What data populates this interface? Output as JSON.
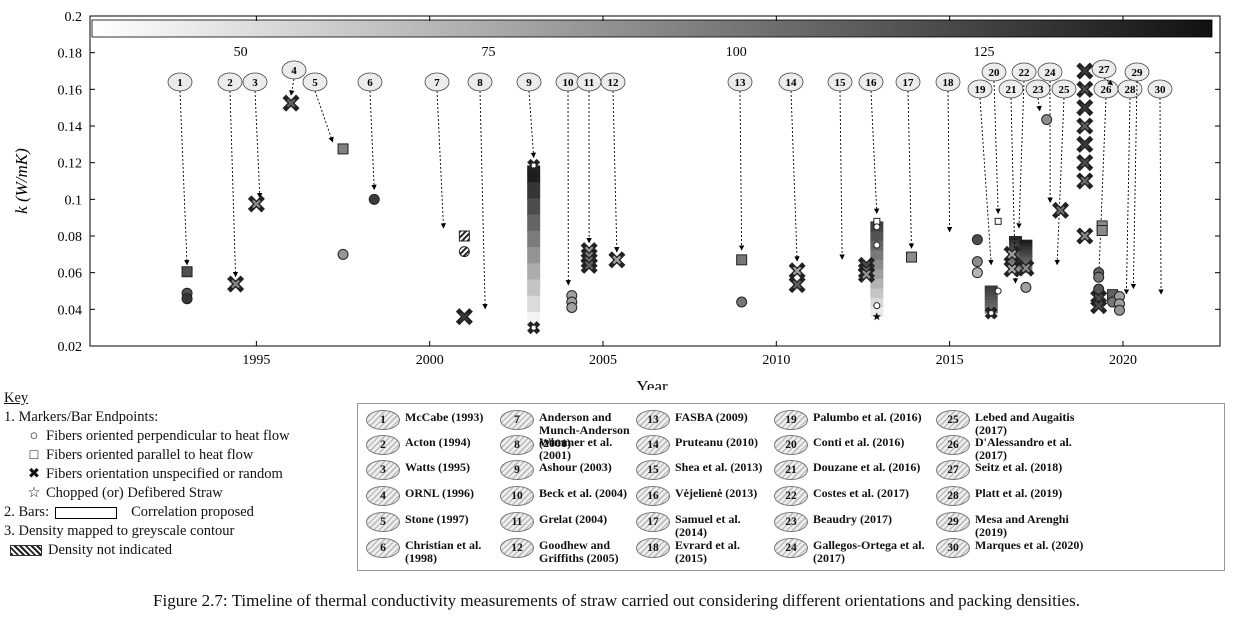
{
  "chart_data": {
    "type": "scatter",
    "xlabel": "Year",
    "ylabel": "k (W/mK)",
    "xlim": [
      1990.2,
      2022.8
    ],
    "ylim": [
      0.02,
      0.2
    ],
    "xticks": [
      "1995",
      "2000",
      "2005",
      "2010",
      "2015",
      "2020"
    ],
    "yticks": [
      "0.02",
      "0.04",
      "0.06",
      "0.08",
      "0.1",
      "0.12",
      "0.14",
      "0.16",
      "0.18",
      "0.2"
    ],
    "colorbar_ticks": [
      "50",
      "75",
      "100",
      "125"
    ],
    "colorbar_range": [
      35,
      148
    ],
    "grid": false,
    "callouts": [
      {
        "n": "1",
        "x": 1993.0,
        "ty": 0.06
      },
      {
        "n": "2",
        "x": 1994.4,
        "ty": 0.0535
      },
      {
        "n": "3",
        "x": 1995.1,
        "ty": 0.0965
      },
      {
        "n": "4",
        "x": 1996.0,
        "ty": 0.1525
      },
      {
        "n": "5",
        "x": 1997.2,
        "ty": 0.127
      },
      {
        "n": "6",
        "x": 1998.4,
        "ty": 0.101
      },
      {
        "n": "7",
        "x": 2000.4,
        "ty": 0.08
      },
      {
        "n": "8",
        "x": 2001.6,
        "ty": 0.036
      },
      {
        "n": "9",
        "x": 2003.0,
        "ty": 0.1185
      },
      {
        "n": "10",
        "x": 2004.0,
        "ty": 0.049
      },
      {
        "n": "11",
        "x": 2004.6,
        "ty": 0.072
      },
      {
        "n": "12",
        "x": 2005.4,
        "ty": 0.067
      },
      {
        "n": "13",
        "x": 2009.0,
        "ty": 0.068
      },
      {
        "n": "14",
        "x": 2010.6,
        "ty": 0.062
      },
      {
        "n": "15",
        "x": 2011.9,
        "ty": 0.063
      },
      {
        "n": "16",
        "x": 2012.9,
        "ty": 0.088
      },
      {
        "n": "17",
        "x": 2013.9,
        "ty": 0.069
      },
      {
        "n": "18",
        "x": 2015.0,
        "ty": 0.078
      },
      {
        "n": "19",
        "x": 2016.2,
        "ty": 0.06
      },
      {
        "n": "20",
        "x": 2016.4,
        "ty": 0.088
      },
      {
        "n": "21",
        "x": 2016.9,
        "ty": 0.05
      },
      {
        "n": "22",
        "x": 2017.0,
        "ty": 0.08
      },
      {
        "n": "23",
        "x": 2017.6,
        "ty": 0.144
      },
      {
        "n": "24",
        "x": 2017.9,
        "ty": 0.094
      },
      {
        "n": "25",
        "x": 2018.1,
        "ty": 0.06
      },
      {
        "n": "26",
        "x": 2019.3,
        "ty": 0.052
      },
      {
        "n": "27",
        "x": 2019.7,
        "ty": 0.158
      },
      {
        "n": "28",
        "x": 2020.1,
        "ty": 0.044
      },
      {
        "n": "29",
        "x": 2020.3,
        "ty": 0.047
      },
      {
        "n": "30",
        "x": 2021.1,
        "ty": 0.044
      }
    ],
    "points": [
      {
        "ref": "1",
        "x": 1993.0,
        "y": 0.0605,
        "marker": "square",
        "density": 118
      },
      {
        "ref": "1",
        "x": 1993.0,
        "y": 0.0488,
        "marker": "circle",
        "density": 118
      },
      {
        "ref": "1",
        "x": 1993.0,
        "y": 0.0458,
        "marker": "circle",
        "density": 130
      },
      {
        "ref": "2",
        "x": 1994.4,
        "y": 0.0538,
        "marker": "cross",
        "density": 90
      },
      {
        "ref": "3",
        "x": 1995.0,
        "y": 0.0975,
        "marker": "cross",
        "density": 90
      },
      {
        "ref": "4",
        "x": 1996.0,
        "y": 0.1525,
        "marker": "cross",
        "density": 110
      },
      {
        "ref": "5",
        "x": 1997.5,
        "y": 0.1275,
        "marker": "square",
        "density": 95
      },
      {
        "ref": "5",
        "x": 1997.5,
        "y": 0.07,
        "marker": "circle",
        "density": 85
      },
      {
        "ref": "6",
        "x": 1998.4,
        "y": 0.1,
        "marker": "circle",
        "density": 128
      },
      {
        "ref": "7",
        "x": 2001.0,
        "y": 0.08,
        "marker": "square",
        "density": null
      },
      {
        "ref": "7",
        "x": 2001.0,
        "y": 0.0715,
        "marker": "circle",
        "density": null
      },
      {
        "ref": "8",
        "x": 2001.0,
        "y": 0.036,
        "marker": "cross",
        "density": 128
      },
      {
        "ref": "10",
        "x": 2004.1,
        "y": 0.0475,
        "marker": "circle",
        "density": 80
      },
      {
        "ref": "10",
        "x": 2004.1,
        "y": 0.044,
        "marker": "circle",
        "density": 80
      },
      {
        "ref": "10",
        "x": 2004.1,
        "y": 0.041,
        "marker": "circle",
        "density": 80
      },
      {
        "ref": "11",
        "x": 2004.6,
        "y": 0.072,
        "marker": "cross",
        "density": 85
      },
      {
        "ref": "11",
        "x": 2004.6,
        "y": 0.069,
        "marker": "cross",
        "density": 90
      },
      {
        "ref": "11",
        "x": 2004.6,
        "y": 0.0665,
        "marker": "cross",
        "density": 100
      },
      {
        "ref": "11",
        "x": 2004.6,
        "y": 0.064,
        "marker": "cross",
        "density": 110
      },
      {
        "ref": "12",
        "x": 2005.4,
        "y": 0.067,
        "marker": "cross",
        "density": 80
      },
      {
        "ref": "13",
        "x": 2009.0,
        "y": 0.067,
        "marker": "square",
        "density": 100
      },
      {
        "ref": "13",
        "x": 2009.0,
        "y": 0.044,
        "marker": "circle",
        "density": 100
      },
      {
        "ref": "14",
        "x": 2010.6,
        "y": 0.061,
        "marker": "cross",
        "density": 80
      },
      {
        "ref": "14",
        "x": 2010.6,
        "y": 0.0535,
        "marker": "cross",
        "density": 110
      },
      {
        "ref": "15",
        "x": 2012.6,
        "y": 0.064,
        "marker": "cross",
        "density": 120
      },
      {
        "ref": "15",
        "x": 2012.6,
        "y": 0.061,
        "marker": "cross",
        "density": 100
      },
      {
        "ref": "15",
        "x": 2012.6,
        "y": 0.059,
        "marker": "cross",
        "density": 85
      },
      {
        "ref": "17",
        "x": 2013.9,
        "y": 0.0685,
        "marker": "square",
        "density": 90
      },
      {
        "ref": "18",
        "x": 2015.8,
        "y": 0.078,
        "marker": "circle",
        "density": 120
      },
      {
        "ref": "18",
        "x": 2015.8,
        "y": 0.066,
        "marker": "circle",
        "density": 90
      },
      {
        "ref": "18",
        "x": 2015.8,
        "y": 0.06,
        "marker": "circle",
        "density": 70
      },
      {
        "ref": "20",
        "x": 2016.8,
        "y": 0.07,
        "marker": "cross",
        "density": 80
      },
      {
        "ref": "20",
        "x": 2016.8,
        "y": 0.062,
        "marker": "cross",
        "density": 75
      },
      {
        "ref": "22",
        "x": 2017.2,
        "y": 0.0625,
        "marker": "cross",
        "density": 90
      },
      {
        "ref": "23",
        "x": 2017.8,
        "y": 0.1435,
        "marker": "circle",
        "density": 90
      },
      {
        "ref": "24",
        "x": 2018.2,
        "y": 0.094,
        "marker": "cross",
        "density": 105
      },
      {
        "ref": "26",
        "x": 2017.2,
        "y": 0.052,
        "marker": "circle",
        "density": 80
      },
      {
        "ref": "27",
        "x": 2018.9,
        "y": 0.17,
        "marker": "cross",
        "density": 128
      },
      {
        "ref": "27",
        "x": 2018.9,
        "y": 0.16,
        "marker": "cross",
        "density": 120
      },
      {
        "ref": "27",
        "x": 2018.9,
        "y": 0.15,
        "marker": "cross",
        "density": 130
      },
      {
        "ref": "27",
        "x": 2018.9,
        "y": 0.14,
        "marker": "cross",
        "density": 110
      },
      {
        "ref": "27",
        "x": 2018.9,
        "y": 0.13,
        "marker": "cross",
        "density": 128
      },
      {
        "ref": "27",
        "x": 2018.9,
        "y": 0.12,
        "marker": "cross",
        "density": 120
      },
      {
        "ref": "27",
        "x": 2018.9,
        "y": 0.11,
        "marker": "cross",
        "density": 105
      },
      {
        "ref": "27",
        "x": 2018.9,
        "y": 0.08,
        "marker": "cross",
        "density": 90
      },
      {
        "ref": "28",
        "x": 2019.4,
        "y": 0.0855,
        "marker": "square",
        "density": 90
      },
      {
        "ref": "28",
        "x": 2019.4,
        "y": 0.083,
        "marker": "square",
        "density": 90
      },
      {
        "ref": "28",
        "x": 2019.3,
        "y": 0.06,
        "marker": "circle",
        "density": 110
      },
      {
        "ref": "28",
        "x": 2019.3,
        "y": 0.0575,
        "marker": "circle",
        "density": 100
      },
      {
        "ref": "28",
        "x": 2019.3,
        "y": 0.051,
        "marker": "circle",
        "density": 115
      },
      {
        "ref": "28",
        "x": 2019.3,
        "y": 0.046,
        "marker": "cross",
        "density": 120
      },
      {
        "ref": "28",
        "x": 2019.3,
        "y": 0.042,
        "marker": "cross",
        "density": 120
      },
      {
        "ref": "29",
        "x": 2019.7,
        "y": 0.048,
        "marker": "square",
        "density": 110
      },
      {
        "ref": "29",
        "x": 2019.7,
        "y": 0.044,
        "marker": "circle",
        "density": 100
      },
      {
        "ref": "30",
        "x": 2019.9,
        "y": 0.047,
        "marker": "circle",
        "density": 80
      },
      {
        "ref": "30",
        "x": 2019.9,
        "y": 0.043,
        "marker": "circle",
        "density": 80
      },
      {
        "ref": "30",
        "x": 2019.9,
        "y": 0.0395,
        "marker": "circle",
        "density": 85
      }
    ],
    "bars": [
      {
        "ref": "9",
        "x": 2003.0,
        "y0": 0.03,
        "y1": 0.1185,
        "d0": 35,
        "d1": 148
      },
      {
        "ref": "16",
        "x": 2012.9,
        "y0": 0.036,
        "y1": 0.088,
        "d0": 40,
        "d1": 130
      },
      {
        "ref": "19",
        "x": 2016.2,
        "y0": 0.038,
        "y1": 0.053,
        "d0": 100,
        "d1": 130
      },
      {
        "ref": "21",
        "x": 2016.9,
        "y0": 0.06,
        "y1": 0.08,
        "d0": 80,
        "d1": 140
      },
      {
        "ref": "22",
        "x": 2017.2,
        "y0": 0.06,
        "y1": 0.078,
        "d0": 90,
        "d1": 145
      }
    ],
    "bar_endpoints": [
      {
        "x": 2003.0,
        "y": 0.1185,
        "marker": "cross"
      },
      {
        "x": 2003.0,
        "y": 0.03,
        "marker": "cross"
      },
      {
        "x": 2012.9,
        "y": 0.088,
        "marker": "square"
      },
      {
        "x": 2012.9,
        "y": 0.085,
        "marker": "circle"
      },
      {
        "x": 2012.9,
        "y": 0.075,
        "marker": "circle"
      },
      {
        "x": 2012.9,
        "y": 0.042,
        "marker": "circle"
      },
      {
        "x": 2012.9,
        "y": 0.036,
        "marker": "star"
      },
      {
        "x": 2016.4,
        "y": 0.088,
        "marker": "square"
      },
      {
        "x": 2016.2,
        "y": 0.038,
        "marker": "cross"
      },
      {
        "x": 2016.4,
        "y": 0.05,
        "marker": "circle"
      }
    ]
  },
  "key": {
    "title": "Key",
    "markers_heading": "1. Markers/Bar Endpoints:",
    "items": [
      {
        "symbol": "○",
        "label": "Fibers oriented perpendicular to heat flow"
      },
      {
        "symbol": "□",
        "label": "Fibers oriented parallel to heat flow"
      },
      {
        "symbol": "✖",
        "label": "Fibers orientation unspecified or random"
      },
      {
        "symbol": "☆",
        "label": "Chopped (or) Defibered Straw"
      }
    ],
    "bars_heading": "2. Bars:",
    "bars_label": "Correlation proposed",
    "density_heading": "3. Density mapped to greyscale contour",
    "density_label": "Density not indicated"
  },
  "references": [
    {
      "n": "1",
      "text": "McCabe (1993)"
    },
    {
      "n": "2",
      "text": "Acton (1994)"
    },
    {
      "n": "3",
      "text": "Watts (1995)"
    },
    {
      "n": "4",
      "text": "ORNL (1996)"
    },
    {
      "n": "5",
      "text": "Stone (1997)"
    },
    {
      "n": "6",
      "text": "Christian et al. (1998)"
    },
    {
      "n": "7",
      "text": "Anderson and Munch-Anderson (2001)"
    },
    {
      "n": "8",
      "text": "Wimmer et al. (2001)"
    },
    {
      "n": "9",
      "text": "Ashour (2003)"
    },
    {
      "n": "10",
      "text": "Beck et al. (2004)"
    },
    {
      "n": "11",
      "text": "Grelat (2004)"
    },
    {
      "n": "12",
      "text": "Goodhew and Griffiths (2005)"
    },
    {
      "n": "13",
      "text": "FASBA (2009)"
    },
    {
      "n": "14",
      "text": "Pruteanu (2010)"
    },
    {
      "n": "15",
      "text": "Shea et al. (2013)"
    },
    {
      "n": "16",
      "text": "Vėjelienė (2013)"
    },
    {
      "n": "17",
      "text": "Samuel et al. (2014)"
    },
    {
      "n": "18",
      "text": "Evrard et al. (2015)"
    },
    {
      "n": "19",
      "text": "Palumbo et al. (2016)"
    },
    {
      "n": "20",
      "text": "Conti et al. (2016)"
    },
    {
      "n": "21",
      "text": "Douzane et al. (2016)"
    },
    {
      "n": "22",
      "text": "Costes et al. (2017)"
    },
    {
      "n": "23",
      "text": "Beaudry (2017)"
    },
    {
      "n": "24",
      "text": "Gallegos-Ortega et al. (2017)"
    },
    {
      "n": "25",
      "text": "Lebed and Augaitis (2017)"
    },
    {
      "n": "26",
      "text": "D'Alessandro et al. (2017)"
    },
    {
      "n": "27",
      "text": "Seitz et al. (2018)"
    },
    {
      "n": "28",
      "text": "Platt et al. (2019)"
    },
    {
      "n": "29",
      "text": "Mesa and Arenghi (2019)"
    },
    {
      "n": "30",
      "text": "Marques et al. (2020)"
    }
  ],
  "caption": "Figure 2.7: Timeline of thermal conductivity measurements of straw carried out considering different orientations and packing densities."
}
